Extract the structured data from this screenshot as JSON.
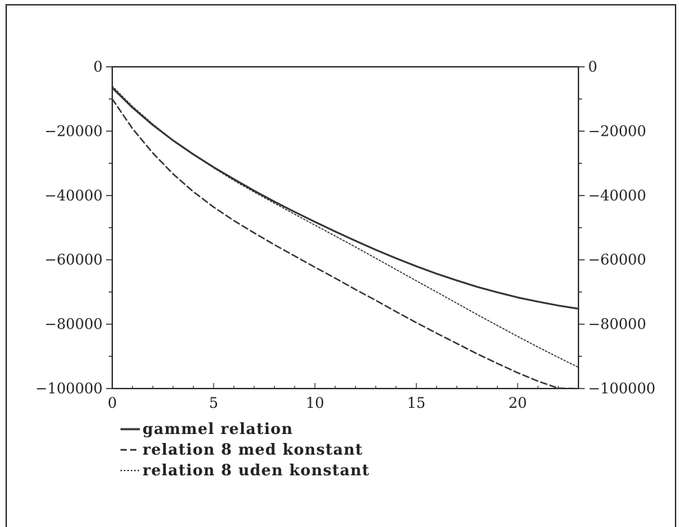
{
  "chart_data": {
    "type": "line",
    "title": "",
    "xlabel": "",
    "ylabel": "",
    "xlim": [
      0,
      23
    ],
    "ylim": [
      -100000,
      0
    ],
    "x_ticks": [
      0,
      5,
      10,
      15,
      20
    ],
    "y_ticks": [
      0,
      -20000,
      -40000,
      -60000,
      -80000,
      -100000
    ],
    "y_tick_labels": [
      "0",
      "-20000",
      "-40000",
      "-60000",
      "-80000",
      "-100000"
    ],
    "x_tick_labels": [
      "0",
      "5",
      "10",
      "15",
      "20"
    ],
    "grid": false,
    "legend_position": "bottom-left",
    "x": [
      0,
      1,
      2,
      3,
      4,
      5,
      6,
      7,
      8,
      9,
      10,
      11,
      12,
      13,
      14,
      15,
      16,
      17,
      18,
      19,
      20,
      21,
      22,
      23
    ],
    "series": [
      {
        "name": "gammel relation",
        "style": "solid",
        "color": "#333333",
        "values": [
          -6500,
          -12700,
          -18100,
          -22900,
          -27200,
          -31200,
          -34900,
          -38500,
          -41900,
          -45100,
          -48200,
          -51200,
          -54100,
          -56900,
          -59500,
          -62000,
          -64300,
          -66400,
          -68400,
          -70100,
          -71700,
          -73000,
          -74200,
          -75200
        ]
      },
      {
        "name": "relation 8 med konstant",
        "style": "dashed",
        "color": "#333333",
        "values": [
          -10000,
          -19200,
          -26800,
          -33300,
          -38800,
          -43600,
          -47800,
          -51600,
          -55300,
          -58800,
          -62300,
          -65700,
          -69200,
          -72600,
          -76100,
          -79500,
          -82800,
          -86000,
          -89200,
          -92200,
          -95100,
          -97700,
          -99900,
          -101800
        ]
      },
      {
        "name": "relation 8 uden konstant",
        "style": "dotted",
        "color": "#333333",
        "values": [
          -6000,
          -12300,
          -17800,
          -22800,
          -27300,
          -31400,
          -35300,
          -38900,
          -42400,
          -45800,
          -49200,
          -52600,
          -56000,
          -59500,
          -63000,
          -66500,
          -70000,
          -73500,
          -77000,
          -80400,
          -83800,
          -87100,
          -90300,
          -93400
        ]
      }
    ]
  }
}
